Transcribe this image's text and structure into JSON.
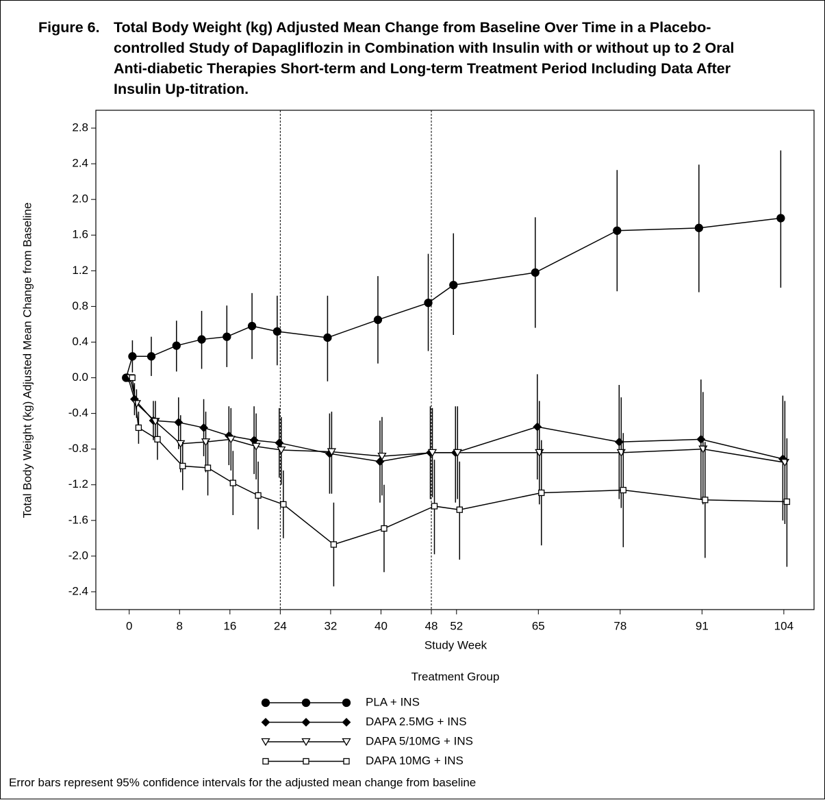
{
  "figure_label": "Figure 6.",
  "title": "Total Body Weight (kg) Adjusted Mean Change from Baseline Over Time in a Placebo-controlled Study of Dapagliflozin in Combination with Insulin with or without up to 2 Oral Anti-diabetic Therapies Short-term and Long-term Treatment Period Including Data After Insulin Up-titration.",
  "footnote": "Error bars represent 95% confidence intervals for the adjusted mean change from baseline",
  "chart_data": {
    "type": "line",
    "x_label": "Study Week",
    "y_label": "Total Body Weight (kg) Adjusted Mean Change from Baseline",
    "legend_title": "Treatment Group",
    "x": [
      0,
      1,
      4,
      8,
      12,
      16,
      20,
      24,
      32,
      40,
      48,
      52,
      65,
      78,
      91,
      104
    ],
    "xlim": [
      -5.3,
      108.8
    ],
    "xticks": [
      0,
      8,
      16,
      24,
      32,
      40,
      48,
      52,
      65,
      78,
      91,
      104
    ],
    "ylim": [
      -2.6,
      3.0
    ],
    "yticks": [
      {
        "value": -2.4,
        "label": "-2.4"
      },
      {
        "value": -2.0,
        "label": "-2.0"
      },
      -1.6,
      -1.2,
      -0.8,
      -0.4,
      {
        "value": 0,
        "label": "0.0"
      },
      0.4,
      0.8,
      1.2,
      1.6,
      {
        "value": 2.0,
        "label": "2.0"
      },
      2.4,
      2.8
    ],
    "reference_lines_x": [
      24,
      48
    ],
    "series": [
      {
        "name": "PLA + INS",
        "color": "#000000",
        "marker": "circle",
        "filled": true,
        "values": [
          0,
          0.24,
          0.24,
          0.36,
          0.43,
          0.46,
          0.58,
          0.52,
          0.45,
          0.65,
          0.84,
          1.04,
          1.18,
          1.65,
          1.68,
          1.79
        ],
        "lower": [
          0,
          0.06,
          0.02,
          0.07,
          0.1,
          0.12,
          0.21,
          0.14,
          -0.04,
          0.16,
          0.3,
          0.48,
          0.56,
          0.97,
          0.96,
          1.01
        ],
        "upper": [
          0,
          0.42,
          0.46,
          0.64,
          0.75,
          0.81,
          0.95,
          0.92,
          0.92,
          1.14,
          1.39,
          1.62,
          1.8,
          2.33,
          2.39,
          2.55
        ]
      },
      {
        "name": "DAPA 2.5MG + INS",
        "color": "#000000",
        "marker": "diamond",
        "filled": true,
        "values": [
          0,
          -0.24,
          -0.48,
          -0.5,
          -0.56,
          -0.65,
          -0.7,
          -0.73,
          -0.85,
          -0.94,
          -0.84,
          -0.84,
          -0.55,
          -0.72,
          -0.69,
          -0.91
        ],
        "lower": [
          0,
          -0.42,
          -0.7,
          -0.8,
          -0.88,
          -0.98,
          -1.08,
          -1.12,
          -1.3,
          -1.4,
          -1.36,
          -1.4,
          -1.14,
          -1.36,
          -1.36,
          -1.6
        ],
        "upper": [
          0,
          -0.06,
          -0.26,
          -0.22,
          -0.24,
          -0.32,
          -0.32,
          -0.34,
          -0.4,
          -0.48,
          -0.32,
          -0.32,
          0.04,
          -0.08,
          -0.02,
          -0.2
        ]
      },
      {
        "name": "DAPA 5/10MG + INS",
        "color": "#000000",
        "marker": "triangle-down",
        "filled": false,
        "values": [
          0,
          -0.29,
          -0.49,
          -0.74,
          -0.72,
          -0.69,
          -0.77,
          -0.81,
          -0.83,
          -0.88,
          -0.84,
          -0.84,
          -0.84,
          -0.84,
          -0.8,
          -0.95
        ],
        "lower": [
          0,
          -0.45,
          -0.72,
          -1.06,
          -1.06,
          -1.04,
          -1.14,
          -1.2,
          -1.3,
          -1.32,
          -1.34,
          -1.36,
          -1.42,
          -1.46,
          -1.42,
          -1.64
        ],
        "upper": [
          0,
          -0.13,
          -0.26,
          -0.42,
          -0.38,
          -0.34,
          -0.4,
          -0.44,
          -0.38,
          -0.44,
          -0.34,
          -0.32,
          -0.26,
          -0.22,
          -0.16,
          -0.26
        ]
      },
      {
        "name": "DAPA 10MG + INS",
        "color": "#000000",
        "marker": "square",
        "filled": false,
        "values": [
          0,
          -0.56,
          -0.69,
          -0.99,
          -1.01,
          -1.18,
          -1.32,
          -1.42,
          -1.87,
          -1.69,
          -1.44,
          -1.48,
          -1.29,
          -1.26,
          -1.37,
          -1.39
        ],
        "lower": [
          0,
          -0.74,
          -0.92,
          -1.26,
          -1.32,
          -1.54,
          -1.7,
          -1.8,
          -2.34,
          -2.18,
          -1.98,
          -2.04,
          -1.88,
          -1.9,
          -2.02,
          -2.12
        ],
        "upper": [
          0,
          -0.38,
          -0.46,
          -0.72,
          -0.7,
          -0.82,
          -0.94,
          -1.04,
          -1.4,
          -1.2,
          -0.92,
          -0.94,
          -0.7,
          -0.62,
          -0.72,
          -0.68
        ]
      }
    ]
  }
}
